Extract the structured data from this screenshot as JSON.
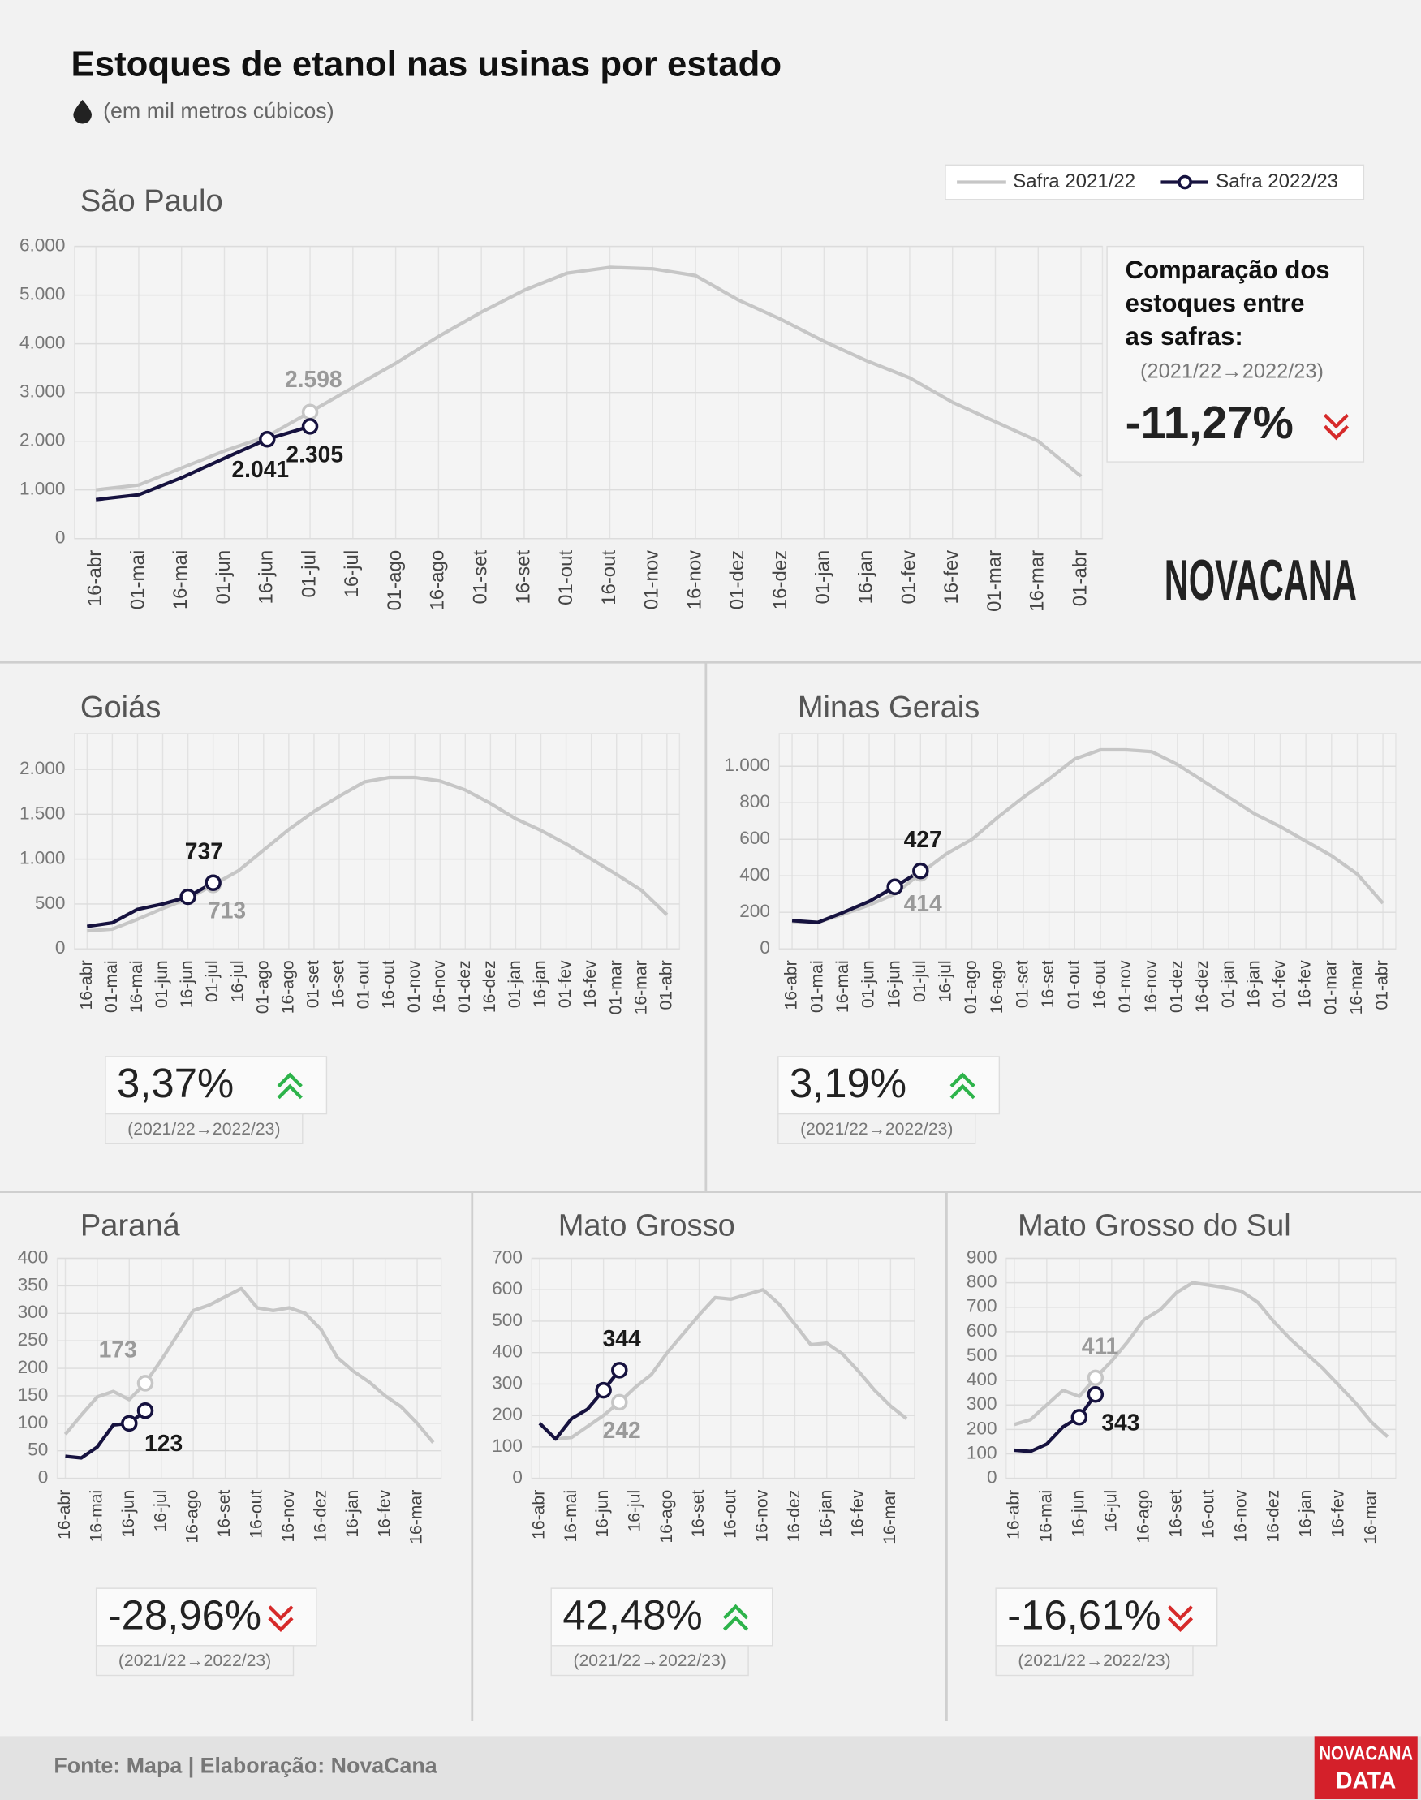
{
  "title": "Estoques de etanol nas usinas por estado",
  "subtitle": "(em mil metros cúbicos)",
  "logo": "NOVACANA",
  "source": "Fonte: Mapa | Elaboração: NovaCana",
  "footer_logo": [
    "NOVACANA",
    "DATA"
  ],
  "chart_data": [
    {
      "type": "line",
      "title": "São Paulo",
      "categories": [
        "16-abr",
        "01-mai",
        "16-mai",
        "01-jun",
        "16-jun",
        "01-jul",
        "16-jul",
        "01-ago",
        "16-ago",
        "01-set",
        "16-set",
        "01-out",
        "16-out",
        "01-nov",
        "16-nov",
        "01-dez",
        "16-dez",
        "01-jan",
        "16-jan",
        "01-fev",
        "16-fev",
        "01-mar",
        "16-mar",
        "01-abr"
      ],
      "series": [
        {
          "name": "Safra 2021/22",
          "color": "#c6c6c6",
          "values": [
            1000,
            1100,
            1450,
            1800,
            2100,
            2598,
            3100,
            3600,
            4150,
            4650,
            5100,
            5450,
            5570,
            5540,
            5400,
            4900,
            4500,
            4050,
            3650,
            3300,
            2800,
            2400,
            2000,
            1280
          ],
          "value_labels": [
            null,
            null,
            null,
            null,
            null,
            "2.598",
            null,
            null,
            null,
            null,
            null,
            null,
            null,
            null,
            null,
            null,
            null,
            null,
            null,
            null,
            null,
            null,
            null,
            null
          ]
        },
        {
          "name": "Safra 2022/23",
          "color": "#16123f",
          "values": [
            800,
            900,
            1250,
            1650,
            2041,
            2305,
            null,
            null,
            null,
            null,
            null,
            null,
            null,
            null,
            null,
            null,
            null,
            null,
            null,
            null,
            null,
            null,
            null,
            null
          ],
          "value_labels": [
            null,
            null,
            null,
            null,
            "2.041",
            "2.305",
            null,
            null,
            null,
            null,
            null,
            null,
            null,
            null,
            null,
            null,
            null,
            null,
            null,
            null,
            null,
            null,
            null,
            null
          ]
        }
      ],
      "ylim": [
        0,
        6000
      ],
      "yticks": [
        0,
        {
          "value": 1000,
          "label": "1.000"
        },
        {
          "value": 2000,
          "label": "2.000"
        },
        {
          "value": 3000,
          "label": "3.000"
        },
        {
          "value": 4000,
          "label": "4.000"
        },
        {
          "value": 5000,
          "label": "5.000"
        },
        {
          "value": 6000,
          "label": "6.000"
        }
      ],
      "grid": true,
      "change_heading": [
        "Comparação dos",
        "estoques entre",
        "as safras:"
      ],
      "change_period": "(2021/22→2022/23)",
      "change": -11.27,
      "change_label": "-11,27%"
    },
    {
      "type": "line",
      "title": "Goiás",
      "categories": [
        "16-abr",
        "01-mai",
        "16-mai",
        "01-jun",
        "16-jun",
        "01-jul",
        "16-jul",
        "01-ago",
        "16-ago",
        "01-set",
        "16-set",
        "01-out",
        "16-out",
        "01-nov",
        "16-nov",
        "01-dez",
        "16-dez",
        "01-jan",
        "16-jan",
        "01-fev",
        "16-fev",
        "01-mar",
        "16-mar",
        "01-abr"
      ],
      "series": [
        {
          "color": "#c6c6c6",
          "values": [
            200,
            220,
            330,
            450,
            560,
            713,
            870,
            1100,
            1330,
            1530,
            1700,
            1860,
            1910,
            1910,
            1870,
            1770,
            1620,
            1450,
            1320,
            1170,
            1000,
            830,
            650,
            380
          ],
          "value_labels": [
            null,
            null,
            null,
            null,
            null,
            "713",
            null,
            null,
            null,
            null,
            null,
            null,
            null,
            null,
            null,
            null,
            null,
            null,
            null,
            null,
            null,
            null,
            null,
            null
          ]
        },
        {
          "color": "#16123f",
          "values": [
            250,
            290,
            440,
            500,
            580,
            737,
            null,
            null,
            null,
            null,
            null,
            null,
            null,
            null,
            null,
            null,
            null,
            null,
            null,
            null,
            null,
            null,
            null,
            null
          ],
          "value_labels": [
            null,
            null,
            null,
            null,
            null,
            "737",
            null,
            null,
            null,
            null,
            null,
            null,
            null,
            null,
            null,
            null,
            null,
            null,
            null,
            null,
            null,
            null,
            null,
            null
          ]
        }
      ],
      "ylim": [
        0,
        2400
      ],
      "yticks": [
        0,
        500,
        {
          "value": 1000,
          "label": "1.000"
        },
        {
          "value": 1500,
          "label": "1.500"
        },
        {
          "value": 2000,
          "label": "2.000"
        }
      ],
      "grid": true,
      "change_period": "(2021/22→2022/23)",
      "change": 3.37,
      "change_label": "3,37%"
    },
    {
      "type": "line",
      "title": "Minas Gerais",
      "categories": [
        "16-abr",
        "01-mai",
        "16-mai",
        "01-jun",
        "16-jun",
        "01-jul",
        "16-jul",
        "01-ago",
        "16-ago",
        "01-set",
        "16-set",
        "01-out",
        "16-out",
        "01-nov",
        "16-nov",
        "01-dez",
        "16-dez",
        "01-jan",
        "16-jan",
        "01-fev",
        "16-fev",
        "01-mar",
        "16-mar",
        "01-abr"
      ],
      "series": [
        {
          "color": "#c6c6c6",
          "values": [
            150,
            145,
            190,
            240,
            300,
            414,
            520,
            600,
            720,
            830,
            930,
            1040,
            1090,
            1090,
            1080,
            1010,
            920,
            830,
            740,
            670,
            590,
            510,
            410,
            250
          ],
          "value_labels": [
            null,
            null,
            null,
            null,
            null,
            "414",
            null,
            null,
            null,
            null,
            null,
            null,
            null,
            null,
            null,
            null,
            null,
            null,
            null,
            null,
            null,
            null,
            null,
            null
          ]
        },
        {
          "color": "#16123f",
          "values": [
            155,
            145,
            200,
            260,
            340,
            427,
            null,
            null,
            null,
            null,
            null,
            null,
            null,
            null,
            null,
            null,
            null,
            null,
            null,
            null,
            null,
            null,
            null,
            null
          ],
          "value_labels": [
            null,
            null,
            null,
            null,
            null,
            "427",
            null,
            null,
            null,
            null,
            null,
            null,
            null,
            null,
            null,
            null,
            null,
            null,
            null,
            null,
            null,
            null,
            null,
            null
          ]
        }
      ],
      "ylim": [
        0,
        1180
      ],
      "yticks": [
        0,
        200,
        400,
        600,
        800,
        {
          "value": 1000,
          "label": "1.000"
        }
      ],
      "grid": true,
      "change_period": "(2021/22→2022/23)",
      "change": 3.19,
      "change_label": "3,19%"
    },
    {
      "type": "line",
      "title": "Paraná",
      "categories": [
        "16-abr",
        null,
        "16-mai",
        null,
        "16-jun",
        null,
        "16-jul",
        null,
        "16-ago",
        null,
        "16-set",
        null,
        "16-out",
        null,
        "16-nov",
        null,
        "16-dez",
        null,
        "16-jan",
        null,
        "16-fev",
        null,
        "16-mar",
        null
      ],
      "series": [
        {
          "color": "#c6c6c6",
          "values": [
            80,
            115,
            148,
            158,
            143,
            173,
            215,
            260,
            305,
            315,
            330,
            345,
            310,
            305,
            310,
            300,
            270,
            220,
            195,
            175,
            150,
            130,
            100,
            65
          ],
          "value_labels": [
            null,
            null,
            null,
            null,
            null,
            "173",
            null,
            null,
            null,
            null,
            null,
            null,
            null,
            null,
            null,
            null,
            null,
            null,
            null,
            null,
            null,
            null,
            null,
            null
          ]
        },
        {
          "color": "#16123f",
          "values": [
            40,
            37,
            57,
            97,
            100,
            123,
            null,
            null,
            null,
            null,
            null,
            null,
            null,
            null,
            null,
            null,
            null,
            null,
            null,
            null,
            null,
            null,
            null,
            null
          ],
          "value_labels": [
            null,
            null,
            null,
            null,
            null,
            "123",
            null,
            null,
            null,
            null,
            null,
            null,
            null,
            null,
            null,
            null,
            null,
            null,
            null,
            null,
            null,
            null,
            null,
            null
          ]
        }
      ],
      "ylim": [
        0,
        400
      ],
      "yticks": [
        0,
        50,
        100,
        150,
        200,
        250,
        300,
        350,
        400
      ],
      "grid": true,
      "change_period": "(2021/22→2022/23)",
      "change": -28.96,
      "change_label": "-28,96%"
    },
    {
      "type": "line",
      "title": "Mato Grosso",
      "categories": [
        "16-abr",
        null,
        "16-mai",
        null,
        "16-jun",
        null,
        "16-jul",
        null,
        "16-ago",
        null,
        "16-set",
        null,
        "16-out",
        null,
        "16-nov",
        null,
        "16-dez",
        null,
        "16-jan",
        null,
        "16-fev",
        null,
        "16-mar",
        null
      ],
      "series": [
        {
          "color": "#c6c6c6",
          "values": [
            null,
            125,
            130,
            165,
            200,
            242,
            290,
            330,
            400,
            460,
            520,
            575,
            570,
            585,
            600,
            555,
            490,
            425,
            430,
            395,
            340,
            280,
            230,
            190
          ],
          "value_labels": [
            null,
            null,
            null,
            null,
            null,
            "242",
            null,
            null,
            null,
            null,
            null,
            null,
            null,
            null,
            null,
            null,
            null,
            null,
            null,
            null,
            null,
            null,
            null,
            null
          ]
        },
        {
          "color": "#16123f",
          "values": [
            175,
            125,
            190,
            220,
            280,
            344,
            null,
            null,
            null,
            null,
            null,
            null,
            null,
            null,
            null,
            null,
            null,
            null,
            null,
            null,
            null,
            null,
            null,
            null
          ],
          "value_labels": [
            null,
            null,
            null,
            null,
            null,
            "344",
            null,
            null,
            null,
            null,
            null,
            null,
            null,
            null,
            null,
            null,
            null,
            null,
            null,
            null,
            null,
            null,
            null,
            null
          ]
        }
      ],
      "ylim": [
        0,
        700
      ],
      "yticks": [
        0,
        100,
        200,
        300,
        400,
        500,
        600,
        700
      ],
      "grid": true,
      "change_period": "(2021/22→2022/23)",
      "change": 42.48,
      "change_label": "42,48%"
    },
    {
      "type": "line",
      "title": "Mato Grosso do Sul",
      "categories": [
        "16-abr",
        null,
        "16-mai",
        null,
        "16-jun",
        null,
        "16-jul",
        null,
        "16-ago",
        null,
        "16-set",
        null,
        "16-out",
        null,
        "16-nov",
        null,
        "16-dez",
        null,
        "16-jan",
        null,
        "16-fev",
        null,
        "16-mar",
        null
      ],
      "series": [
        {
          "color": "#c6c6c6",
          "values": [
            220,
            240,
            300,
            360,
            335,
            411,
            480,
            560,
            650,
            690,
            760,
            800,
            790,
            780,
            765,
            720,
            640,
            570,
            510,
            450,
            380,
            310,
            230,
            170
          ],
          "value_labels": [
            null,
            null,
            null,
            null,
            null,
            "411",
            null,
            null,
            null,
            null,
            null,
            null,
            null,
            null,
            null,
            null,
            null,
            null,
            null,
            null,
            null,
            null,
            null,
            null
          ]
        },
        {
          "color": "#16123f",
          "values": [
            115,
            110,
            140,
            210,
            250,
            343,
            null,
            null,
            null,
            null,
            null,
            null,
            null,
            null,
            null,
            null,
            null,
            null,
            null,
            null,
            null,
            null,
            null,
            null
          ],
          "value_labels": [
            null,
            null,
            null,
            null,
            null,
            "343",
            null,
            null,
            null,
            null,
            null,
            null,
            null,
            null,
            null,
            null,
            null,
            null,
            null,
            null,
            null,
            null,
            null,
            null
          ]
        }
      ],
      "ylim": [
        0,
        900
      ],
      "yticks": [
        0,
        100,
        200,
        300,
        400,
        500,
        600,
        700,
        800,
        900
      ],
      "grid": true,
      "change_period": "(2021/22→2022/23)",
      "change": -16.61,
      "change_label": "-16,61%"
    }
  ]
}
